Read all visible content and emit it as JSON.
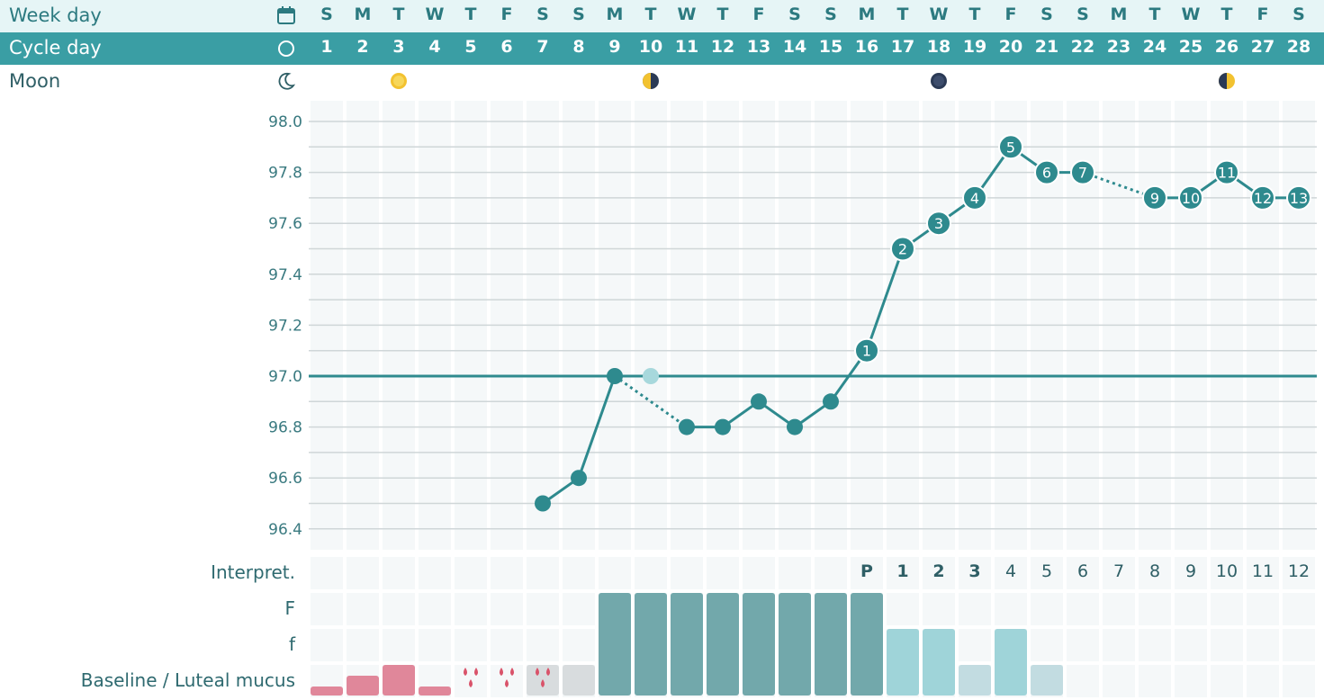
{
  "header": {
    "weekday_label": "Week day",
    "cycle_label": "Cycle day",
    "moon_label": "Moon",
    "weekdays": [
      "S",
      "M",
      "T",
      "W",
      "T",
      "F",
      "S",
      "S",
      "M",
      "T",
      "W",
      "T",
      "F",
      "S",
      "S",
      "M",
      "T",
      "W",
      "T",
      "F",
      "S",
      "S",
      "M",
      "T",
      "W",
      "T",
      "F",
      "S"
    ],
    "cycle_days": [
      "1",
      "2",
      "3",
      "4",
      "5",
      "6",
      "7",
      "8",
      "9",
      "10",
      "11",
      "12",
      "13",
      "14",
      "15",
      "16",
      "17",
      "18",
      "19",
      "20",
      "21",
      "22",
      "23",
      "24",
      "25",
      "26",
      "27",
      "28"
    ],
    "moon_phases": [
      {
        "day": 3,
        "phase": "full-moon",
        "icon": "full-moon-icon",
        "color": "#f2c230"
      },
      {
        "day": 10,
        "phase": "last-quarter",
        "icon": "half-moon-icon",
        "color": "#f2c230"
      },
      {
        "day": 18,
        "phase": "new-moon",
        "icon": "new-moon-icon",
        "color": "#2b3a55"
      },
      {
        "day": 26,
        "phase": "first-quarter",
        "icon": "half-moon-icon",
        "color": "#f2c230"
      }
    ]
  },
  "chart_data": {
    "type": "line",
    "y_ticks": [
      "98.0",
      "97.8",
      "97.6",
      "97.4",
      "97.2",
      "97.0",
      "96.8",
      "96.6",
      "96.4"
    ],
    "ylim": [
      96.31,
      98.05
    ],
    "coverline": 97.0,
    "temperatures": [
      {
        "day": 7,
        "value": 96.5,
        "label": ""
      },
      {
        "day": 8,
        "value": 96.6,
        "label": ""
      },
      {
        "day": 9,
        "value": 97.0,
        "label": ""
      },
      {
        "day": 10,
        "value": 97.0,
        "label": "",
        "excluded": true
      },
      {
        "day": 11,
        "value": 96.8,
        "label": ""
      },
      {
        "day": 12,
        "value": 96.8,
        "label": ""
      },
      {
        "day": 13,
        "value": 96.9,
        "label": ""
      },
      {
        "day": 14,
        "value": 96.8,
        "label": ""
      },
      {
        "day": 15,
        "value": 96.9,
        "label": ""
      },
      {
        "day": 16,
        "value": 97.1,
        "label": "1"
      },
      {
        "day": 17,
        "value": 97.5,
        "label": "2"
      },
      {
        "day": 18,
        "value": 97.6,
        "label": "3"
      },
      {
        "day": 19,
        "value": 97.7,
        "label": "4"
      },
      {
        "day": 20,
        "value": 97.9,
        "label": "5"
      },
      {
        "day": 21,
        "value": 97.8,
        "label": "6"
      },
      {
        "day": 22,
        "value": 97.8,
        "label": "7"
      },
      {
        "day": 24,
        "value": 97.7,
        "label": "9"
      },
      {
        "day": 25,
        "value": 97.7,
        "label": "10"
      },
      {
        "day": 26,
        "value": 97.8,
        "label": "11"
      },
      {
        "day": 27,
        "value": 97.7,
        "label": "12"
      },
      {
        "day": 28,
        "value": 97.7,
        "label": "13"
      }
    ],
    "dotted_segments": [
      [
        9,
        11
      ],
      [
        22,
        24
      ]
    ],
    "colors": {
      "line": "#2e8a8e",
      "excluded_point": "#a7d8dc",
      "grid": "#cfd6d8",
      "cell_bg": "#f5f8f9"
    }
  },
  "bottom": {
    "interp_label": "Interpret.",
    "interpretations": [
      "",
      "",
      "",
      "",
      "",
      "",
      "",
      "",
      "",
      "",
      "",
      "",
      "",
      "",
      "",
      "P",
      "1",
      "2",
      "3",
      "4",
      "5",
      "6",
      "7",
      "8",
      "9",
      "10",
      "11",
      "12"
    ],
    "bold_interpretations": [
      16,
      17,
      18,
      19
    ],
    "mucus_labels": {
      "F": "F",
      "f": "f",
      "baseline": "Baseline / Luteal mucus"
    },
    "mucus": [
      {
        "day": 1,
        "type": "bleeding",
        "level": 1
      },
      {
        "day": 2,
        "type": "bleeding",
        "level": 2
      },
      {
        "day": 3,
        "type": "bleeding",
        "level": 3
      },
      {
        "day": 4,
        "type": "bleeding",
        "level": 1
      },
      {
        "day": 5,
        "type": "spotting",
        "level": 0,
        "bg": false
      },
      {
        "day": 6,
        "type": "spotting",
        "level": 0,
        "bg": false
      },
      {
        "day": 7,
        "type": "spotting",
        "level": 0,
        "bg": true
      },
      {
        "day": 8,
        "type": "dry",
        "level": 0
      },
      {
        "day": 9,
        "type": "F",
        "level": 0
      },
      {
        "day": 10,
        "type": "F",
        "level": 0
      },
      {
        "day": 11,
        "type": "F",
        "level": 0
      },
      {
        "day": 12,
        "type": "F",
        "level": 0
      },
      {
        "day": 13,
        "type": "F",
        "level": 0
      },
      {
        "day": 14,
        "type": "F",
        "level": 0
      },
      {
        "day": 15,
        "type": "F",
        "level": 0
      },
      {
        "day": 16,
        "type": "F",
        "level": 0
      },
      {
        "day": 17,
        "type": "f",
        "level": 0
      },
      {
        "day": 18,
        "type": "f",
        "level": 0
      },
      {
        "day": 19,
        "type": "baseline",
        "level": 0
      },
      {
        "day": 20,
        "type": "f",
        "level": 0
      },
      {
        "day": 21,
        "type": "baseline",
        "level": 0
      }
    ],
    "colors": {
      "bleeding": "#e0879a",
      "drop": "#d9536a",
      "gray": "#d8dcde",
      "F": "#72a8ab",
      "f": "#9fd4d9",
      "baseline": "#c2dce1"
    }
  }
}
